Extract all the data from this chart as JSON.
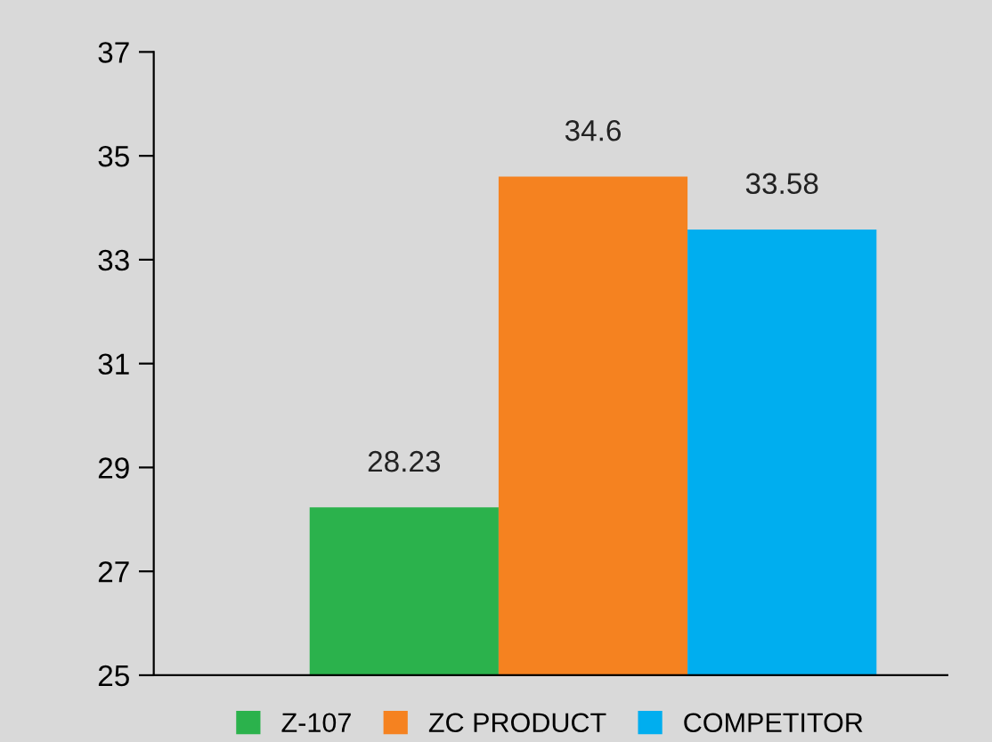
{
  "chart_data": {
    "type": "bar",
    "categories": [
      null
    ],
    "series": [
      {
        "name": "Z-107",
        "color": "#2bb24c",
        "values": [
          28.23
        ]
      },
      {
        "name": "ZC PRODUCT",
        "color": "#f58220",
        "values": [
          34.6
        ]
      },
      {
        "name": "COMPETITOR",
        "color": "#00aeef",
        "values": [
          33.58
        ]
      }
    ],
    "ylim": [
      25,
      37
    ],
    "yticks": [
      25,
      27,
      29,
      31,
      33,
      35,
      37
    ],
    "data_labels": true,
    "grid": false,
    "legend": "bottom"
  }
}
